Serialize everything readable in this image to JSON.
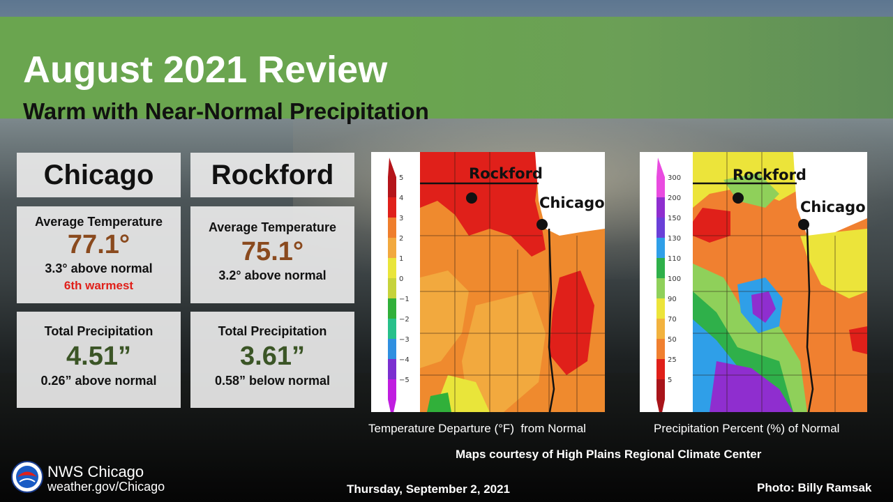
{
  "header": {
    "title": "August 2021 Review",
    "subtitle": "Warm with Near-Normal Precipitation"
  },
  "chicago": {
    "name": "Chicago",
    "temp_label": "Average Temperature",
    "temp_value": "77.1°",
    "temp_note": "3.3° above normal",
    "temp_rank": "6th warmest",
    "precip_label": "Total Precipitation",
    "precip_value": "4.51”",
    "precip_note": "0.26” above normal"
  },
  "rockford": {
    "name": "Rockford",
    "temp_label": "Average Temperature",
    "temp_value": "75.1°",
    "temp_note": "3.2° above normal",
    "precip_label": "Total Precipitation",
    "precip_value": "3.61”",
    "precip_note": "0.58” below normal"
  },
  "temp_map": {
    "caption": "Temperature Departure (°F)  from Normal",
    "legend": [
      "5",
      "4",
      "3",
      "2",
      "1",
      "0",
      "−1",
      "−2",
      "−3",
      "−4",
      "−5"
    ],
    "legend_colors": [
      "#b5141a",
      "#e0201a",
      "#ef7e2c",
      "#f2a93e",
      "#e9e53a",
      "#c6d33b",
      "#31b03a",
      "#27c08a",
      "#2f8fe0",
      "#7b2fd0",
      "#c01de0"
    ],
    "city_labels": [
      "Rockford",
      "Chicago"
    ]
  },
  "precip_map": {
    "caption": "Precipitation Percent (%) of Normal",
    "legend": [
      "300",
      "200",
      "150",
      "130",
      "110",
      "100",
      "90",
      "70",
      "50",
      "25",
      "5"
    ],
    "legend_colors": [
      "#e94be0",
      "#8f2ecf",
      "#6a40d8",
      "#2f9fe8",
      "#2fb04a",
      "#8fd05a",
      "#ece43a",
      "#f2b23e",
      "#f08030",
      "#e0201a",
      "#a8141a"
    ],
    "city_labels": [
      "Rockford",
      "Chicago"
    ]
  },
  "credits": {
    "maps": "Maps courtesy of High Plains Regional Climate Center",
    "office": "NWS Chicago",
    "url": "weather.gov/Chicago",
    "date": "Thursday, September 2, 2021",
    "photo": "Photo: Billy Ramsak"
  }
}
